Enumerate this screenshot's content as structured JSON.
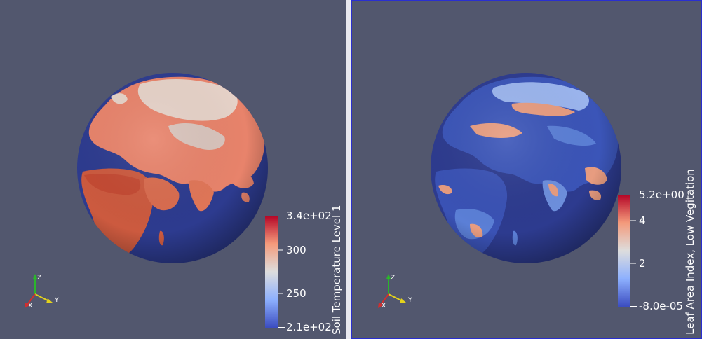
{
  "views": [
    {
      "id": "left",
      "colorbar": {
        "title": "Soil Temperature Level 1",
        "ticks": [
          "3.4e+02",
          "300",
          "250",
          "2.1e+02"
        ],
        "range": [
          210,
          340
        ],
        "tick_values": [
          340,
          300,
          250,
          210
        ]
      },
      "globe": {
        "scalar": "Soil Temperature Level 1",
        "ocean_color": "#2d3b8f",
        "land_colors": [
          "#e8836b",
          "#f1a989",
          "#cc5a3f",
          "#e6d2c8"
        ]
      },
      "axes": {
        "x": "X",
        "y": "Y",
        "z": "Z"
      },
      "active": false
    },
    {
      "id": "right",
      "colorbar": {
        "title": "Leaf Area Index, Low Vegitation",
        "ticks": [
          "5.2e+00",
          "4",
          "2",
          "-8.0e-05"
        ],
        "range": [
          -8e-05,
          5.2
        ],
        "tick_values": [
          5.2,
          4,
          2,
          -8e-05
        ]
      },
      "globe": {
        "scalar": "Leaf Area Index, Low Vegitation",
        "ocean_color": "#2d3b8f",
        "land_colors": [
          "#3b55b8",
          "#5b7fd6",
          "#e79c80",
          "#9bb5ee"
        ]
      },
      "axes": {
        "x": "X",
        "y": "Y",
        "z": "Z"
      },
      "active": true
    }
  ],
  "colors": {
    "background": "#52576e",
    "cmap_low": "#3b4cc0",
    "cmap_mid": "#dddddd",
    "cmap_high": "#b40426",
    "axis_x": "#d12f2f",
    "axis_y": "#e3d21c",
    "axis_z": "#2bb52b"
  }
}
